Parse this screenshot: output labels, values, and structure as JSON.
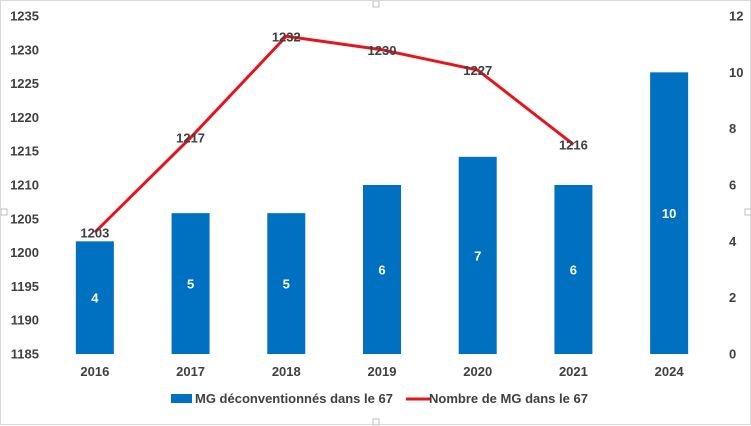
{
  "chart_data": {
    "type": "bar",
    "categories": [
      "2016",
      "2017",
      "2018",
      "2019",
      "2020",
      "2021",
      "2024"
    ],
    "series": [
      {
        "name": "MG déconventionnés dans le 67",
        "type": "bar",
        "axis": "right",
        "values": [
          4,
          5,
          5,
          6,
          7,
          6,
          10
        ],
        "data_labels": [
          "4",
          "5",
          "5",
          "6",
          "7",
          "6",
          "10"
        ]
      },
      {
        "name": "Nombre de MG dans le 67",
        "type": "line",
        "axis": "left",
        "values": [
          1203,
          1217,
          1232,
          1230,
          1227,
          1216,
          null
        ],
        "data_labels": [
          "1203",
          "1217",
          "1232",
          "1230",
          "1227",
          "1216",
          ""
        ]
      }
    ],
    "y_left": {
      "ylim": [
        1185,
        1235
      ],
      "ticks": [
        "1185",
        "1190",
        "1195",
        "1200",
        "1205",
        "1210",
        "1215",
        "1220",
        "1225",
        "1230",
        "1235"
      ]
    },
    "y_right": {
      "ylim": [
        0,
        12
      ],
      "ticks": [
        "0",
        "2",
        "4",
        "6",
        "8",
        "10",
        "12"
      ]
    },
    "title": "",
    "xlabel": "",
    "ylabel": "",
    "grid": false,
    "legend_position": "bottom",
    "colors": {
      "bar": "#0070c0",
      "line": "#e8141c",
      "text": "#404040",
      "bar_label": "#ffffff"
    }
  }
}
